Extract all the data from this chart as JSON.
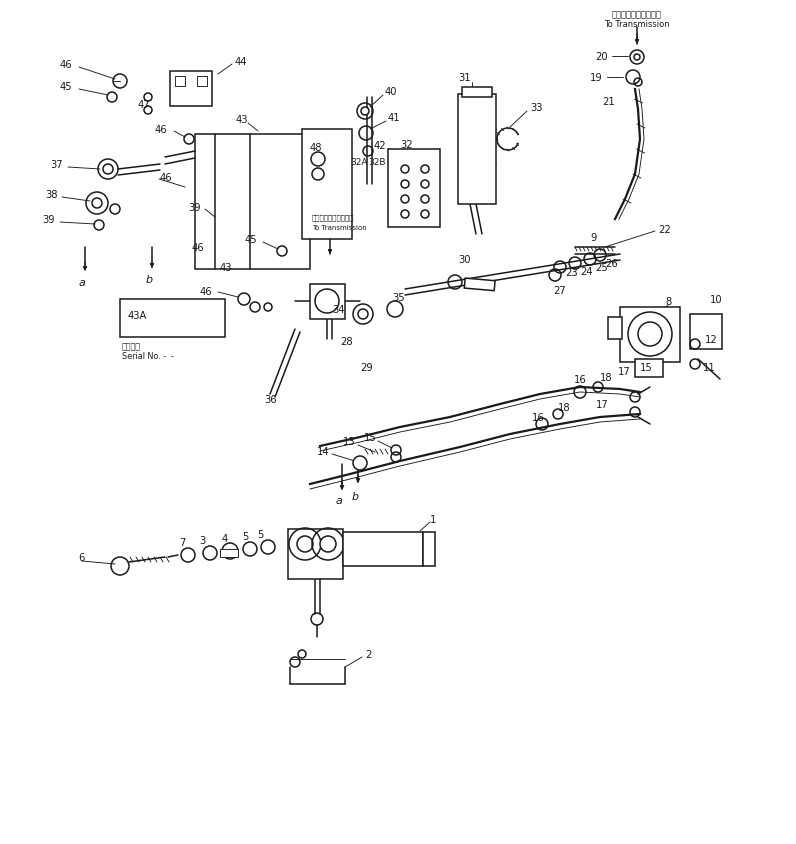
{
  "bg_color": "#ffffff",
  "line_color": "#1a1a1a",
  "fig_width": 7.96,
  "fig_height": 8.45,
  "dpi": 100,
  "lw_main": 1.1,
  "lw_thin": 0.65,
  "lw_thick": 1.6,
  "fs_label": 7.2,
  "fs_small": 5.8,
  "fs_italic": 8.0,
  "transmission_jp": "トランスミッションへ",
  "transmission_en": "To Transmission",
  "serial_jp": "適用番号",
  "serial_en": "Serial No. -  -"
}
